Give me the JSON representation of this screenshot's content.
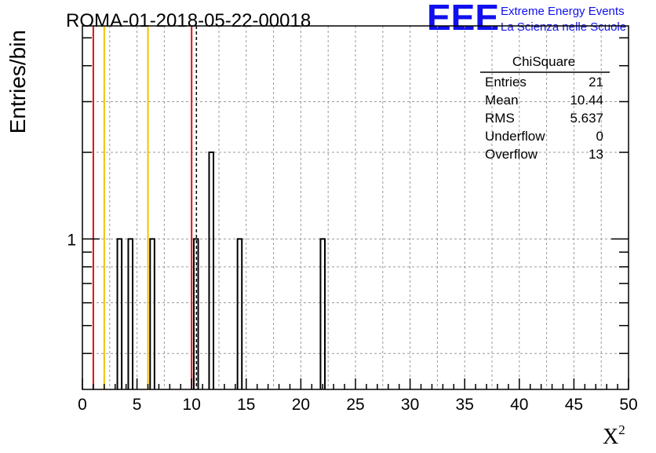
{
  "header": {
    "run_title": "ROMA-01-2018-05-22-00018",
    "logo_text": "EEE",
    "logo_line1": "Extreme Energy Events",
    "logo_line2": "La Scienza nelle Scuole"
  },
  "colors": {
    "logo": "#1010ee",
    "red_line": "#dd1111",
    "yellow_line": "#f2c200",
    "grid": "#9a9a9a"
  },
  "stats": {
    "title": "ChiSquare",
    "rows": [
      {
        "label": "Entries",
        "value": "21"
      },
      {
        "label": "Mean",
        "value": "10.44"
      },
      {
        "label": "RMS",
        "value": "5.637"
      },
      {
        "label": "Underflow",
        "value": "0"
      },
      {
        "label": "Overflow",
        "value": "13"
      }
    ]
  },
  "chart_data": {
    "type": "bar",
    "ylabel": "Entries/bin",
    "xlabel": "X",
    "xlabel_sup": "2",
    "xlim": [
      0,
      50
    ],
    "ylog": true,
    "ylim": [
      0.3,
      5.5
    ],
    "x_ticks": [
      "0",
      "5",
      "10",
      "15",
      "20",
      "25",
      "30",
      "35",
      "40",
      "45",
      "50"
    ],
    "y_ticks": [
      "1"
    ],
    "grid": true,
    "bin_width": 0.4,
    "bins": [
      {
        "x": 3.2,
        "value": 1
      },
      {
        "x": 4.2,
        "value": 1
      },
      {
        "x": 6.2,
        "value": 1
      },
      {
        "x": 10.2,
        "value": 1
      },
      {
        "x": 11.6,
        "value": 2
      },
      {
        "x": 14.2,
        "value": 1
      },
      {
        "x": 21.8,
        "value": 1
      }
    ],
    "vlines": [
      {
        "x": 1.0,
        "color": "red"
      },
      {
        "x": 2.0,
        "color": "yellow"
      },
      {
        "x": 6.0,
        "color": "yellow"
      },
      {
        "x": 10.0,
        "color": "red"
      },
      {
        "x": 10.44,
        "color": "black",
        "dashed": true
      }
    ]
  }
}
